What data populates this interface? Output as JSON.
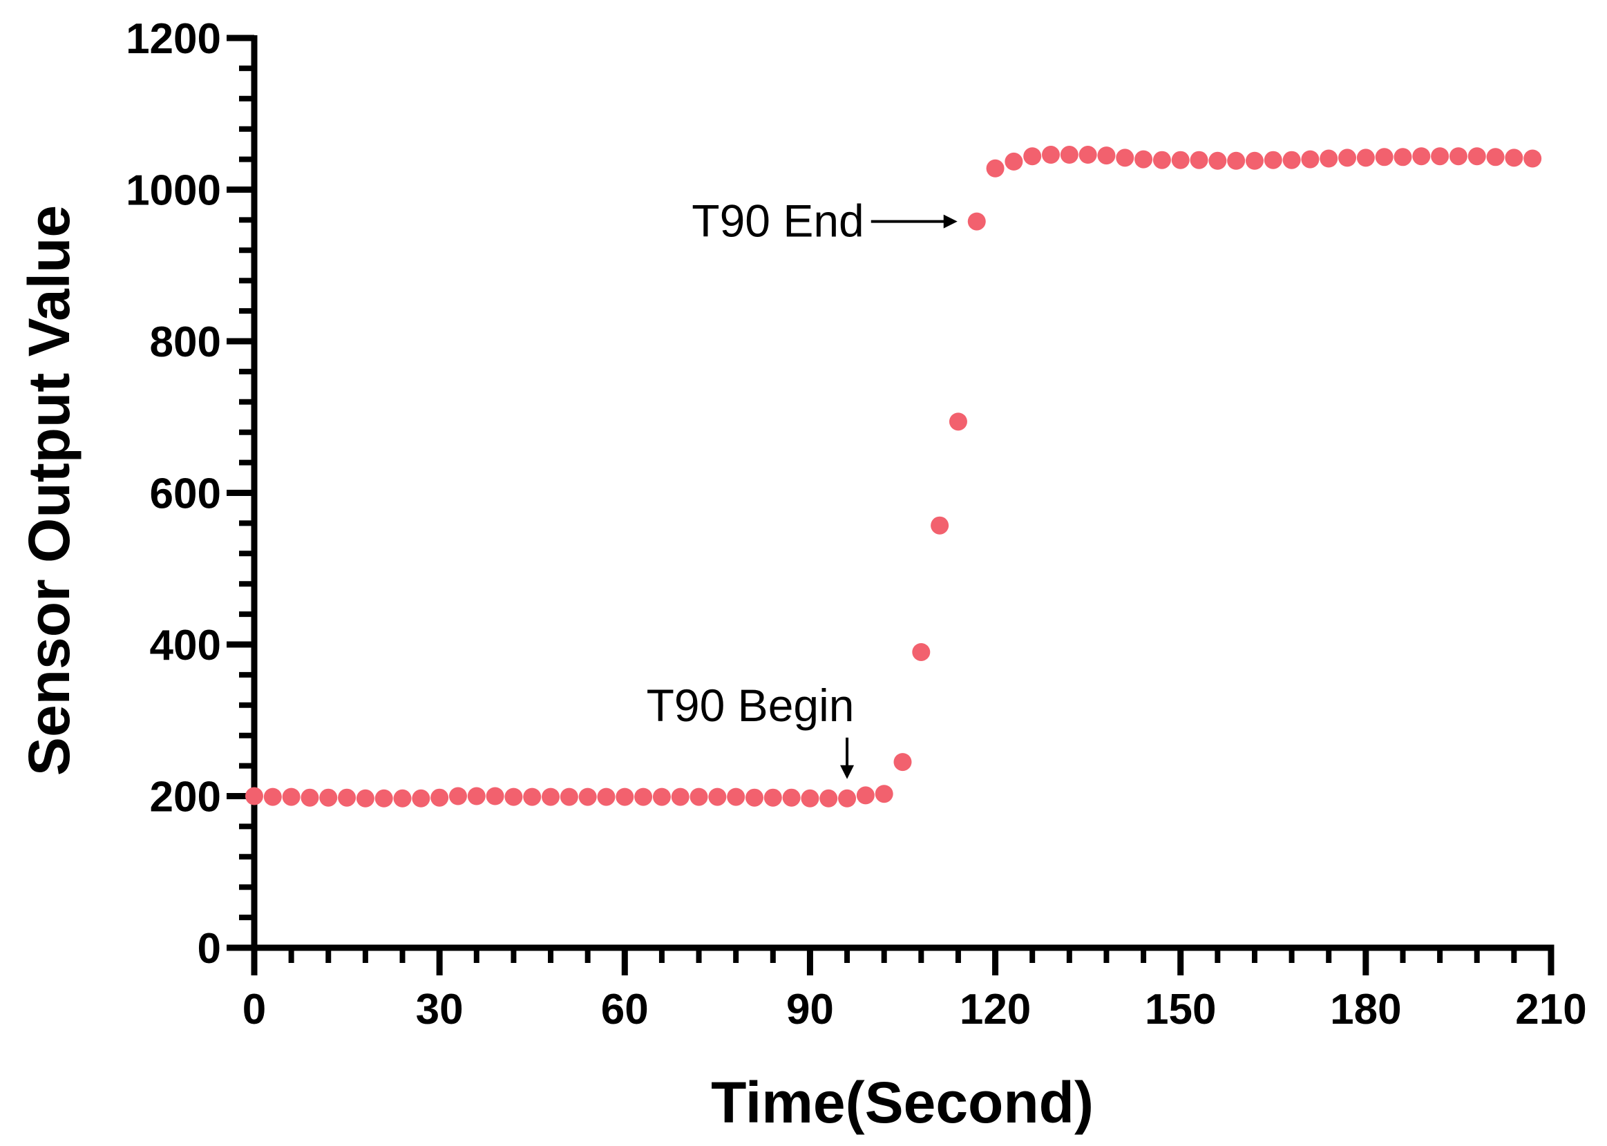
{
  "chart_data": {
    "type": "scatter",
    "title": "",
    "xlabel": "Time(Second)",
    "ylabel": "Sensor Output Value",
    "xlim": [
      0,
      210
    ],
    "ylim": [
      0,
      1200
    ],
    "x_ticks": [
      0,
      30,
      60,
      90,
      120,
      150,
      180,
      210
    ],
    "y_ticks": [
      0,
      200,
      400,
      600,
      800,
      1000,
      1200
    ],
    "x_tick_labels": [
      "0",
      "30",
      "60",
      "90",
      "120",
      "150",
      "180",
      "210"
    ],
    "y_tick_labels": [
      "0",
      "200",
      "400",
      "600",
      "800",
      "1000",
      "1200"
    ],
    "grid": false,
    "legend": "none",
    "marker_color": "#F2616E",
    "series": [
      {
        "x": [
          0,
          3,
          6,
          9,
          12,
          15,
          18,
          21,
          24,
          27,
          30,
          33,
          36,
          39,
          42,
          45,
          48,
          51,
          54,
          57,
          60,
          63,
          66,
          69,
          72,
          75,
          78,
          81,
          84,
          87,
          90,
          93,
          96,
          99,
          102,
          105,
          108,
          111,
          114,
          117,
          120,
          123,
          126,
          129,
          132,
          135,
          138,
          141,
          144,
          147,
          150,
          153,
          156,
          159,
          162,
          165,
          168,
          171,
          174,
          177,
          180,
          183,
          186,
          189,
          192,
          195,
          198,
          201,
          204,
          207
        ],
        "y": [
          200,
          199,
          199,
          198,
          198,
          198,
          197,
          197,
          197,
          197,
          198,
          200,
          200,
          200,
          199,
          199,
          199,
          199,
          199,
          199,
          199,
          199,
          199,
          199,
          199,
          199,
          199,
          198,
          198,
          198,
          197,
          197,
          197,
          201,
          203,
          245,
          390,
          557,
          694,
          958,
          1028,
          1037,
          1044,
          1046,
          1046,
          1046,
          1045,
          1042,
          1040,
          1039,
          1039,
          1039,
          1038,
          1038,
          1038,
          1039,
          1039,
          1040,
          1041,
          1042,
          1042,
          1043,
          1043,
          1044,
          1044,
          1044,
          1044,
          1043,
          1042,
          1041
        ]
      }
    ],
    "annotations": [
      {
        "text": "T90 Begin",
        "point_x": 96,
        "point_y": 197,
        "arrow": "down"
      },
      {
        "text": "T90 End",
        "point_x": 117,
        "point_y": 958,
        "arrow": "right"
      }
    ]
  }
}
